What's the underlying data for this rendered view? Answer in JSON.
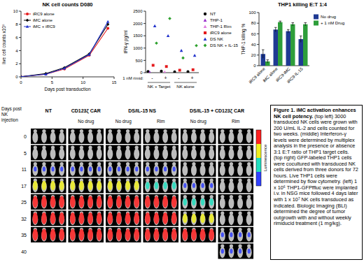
{
  "chart_data": [
    {
      "type": "line",
      "title": "NK cell counts D080",
      "x_label": "Days post transduction",
      "y_label": "live cell counts x10⁵",
      "x": [
        0,
        4,
        7,
        11,
        14
      ],
      "xlim": [
        0,
        15
      ],
      "xticks": [
        0,
        5,
        10,
        15
      ],
      "ylim": [
        0,
        10
      ],
      "yticks": [
        0,
        2,
        4,
        6,
        8,
        10
      ],
      "legend": "upper left",
      "series": [
        {
          "name": "iRC9 alone",
          "color": "#e41a1c",
          "marker": "circle",
          "values": [
            0.03,
            0.4,
            1.2,
            3.3,
            7.4
          ]
        },
        {
          "name": "iMC alone",
          "color": "#000000",
          "marker": "diamond",
          "values": [
            0.03,
            0.5,
            1.4,
            3.5,
            8.0
          ]
        },
        {
          "name": "iMC + iRC9",
          "color": "#2233cc",
          "marker": "triangle",
          "values": [
            0.03,
            0.4,
            1.3,
            3.4,
            8.4
          ]
        }
      ]
    },
    {
      "type": "scatter",
      "y_label": "IFN-γ pg/ml",
      "row_label": "1 nM rimid:",
      "categories": [
        "-",
        "+",
        "-",
        "+"
      ],
      "group_labels": [
        "NK + Target",
        "NK alone"
      ],
      "ylim": [
        0,
        2500
      ],
      "yticks": [
        0,
        500,
        1000,
        1500,
        2000,
        2500
      ],
      "legend": "right",
      "series": [
        {
          "name": "NT",
          "color": "#000000",
          "marker": "circle",
          "values": [
            50,
            60,
            30,
            40
          ]
        },
        {
          "name": "THP-1",
          "color": "#9932cc",
          "marker": "triangle",
          "values": [
            20,
            null,
            null,
            null
          ]
        },
        {
          "name": "THP-1 Rim",
          "color": "#e07be0",
          "marker": "triangle",
          "values": [
            null,
            25,
            null,
            null
          ]
        },
        {
          "name": "iRC9 alone",
          "color": "#e41a1c",
          "marker": "square",
          "values": [
            300,
            250,
            100,
            120
          ]
        },
        {
          "name": "DS NK",
          "color": "#2233cc",
          "marker": "triangle",
          "values": [
            1900,
            1500,
            900,
            700
          ]
        },
        {
          "name": "DS NK + IL-15",
          "color": "#2ca02c",
          "marker": "diamond",
          "values": [
            1200,
            2200,
            600,
            1100
          ]
        }
      ]
    },
    {
      "type": "bar",
      "title": "THP1 killing E:T 1:4",
      "y_label": "THP-1 killing %",
      "categories": [
        "iRC9 alone",
        "iMC alone",
        "iRC9-iMC",
        "iRC9-IL-15"
      ],
      "ylim": [
        0,
        100
      ],
      "yticks": [
        0,
        20,
        40,
        60,
        80,
        100
      ],
      "legend": "right",
      "series": [
        {
          "name": "No drug",
          "color": "#1f3a93",
          "values": [
            22,
            68,
            65,
            50
          ],
          "errors": [
            8,
            4,
            3,
            6
          ]
        },
        {
          "name": "+ 1 nM Drug",
          "color": "#2e9e3a",
          "values": [
            8,
            82,
            78,
            78
          ],
          "errors": [
            3,
            2,
            3,
            3
          ]
        }
      ]
    }
  ],
  "imaging": {
    "row_label": "Days post NK injection",
    "groups": [
      {
        "label": "NT",
        "panels": [
          null
        ]
      },
      {
        "label": "CD123ζ CAR",
        "panels": [
          "No drug"
        ]
      },
      {
        "label": "DS/IL-15 NS",
        "panels": [
          "No drug",
          "Rim"
        ]
      },
      {
        "label": "DS/IL-15 + CD123ζ CAR",
        "panels": [
          "No drug",
          "Rim"
        ]
      }
    ],
    "rows": [
      {
        "day": 0,
        "signal": [
          0,
          0,
          0,
          0,
          0,
          0
        ]
      },
      {
        "day": 5,
        "signal": [
          0,
          0,
          0,
          0,
          0,
          0
        ]
      },
      {
        "day": 11,
        "signal": [
          1,
          1,
          1,
          1,
          0,
          0
        ]
      },
      {
        "day": 17,
        "signal": [
          3,
          3,
          3,
          2,
          1,
          0
        ]
      },
      {
        "day": 25,
        "signal": [
          4,
          4,
          4,
          4,
          2,
          0
        ]
      },
      {
        "day": 32,
        "signal": [
          4,
          4,
          4,
          4,
          3,
          0
        ]
      },
      {
        "day": 35,
        "signal": [
          4,
          4,
          4,
          4,
          4,
          1
        ]
      },
      {
        "day": 40,
        "signal": [
          null,
          null,
          null,
          null,
          null,
          1
        ]
      }
    ],
    "colorbar": {
      "title": "Luminescence",
      "colors": [
        "#3040ff",
        "#20e0c0",
        "#f0f020",
        "#ff2020"
      ]
    }
  },
  "caption": {
    "title": "Figure 1. iMC activation enhances NK cell potency.",
    "text": "(top left) 3000 transduced NK cells were grown with 200 U/mL IL-2 and cells counted for two weeks. (middle) Interferon-γ levels were determined by multiplex analysis in the presence or absence 3:1 E:T ratio of THP1 target cells. (top right) GFP-labeled THP1 cells were cocultured with transduced NK cells derived from three donors for 72 hours. Live THP1 cells were determined by flow cytometry. (left) 1 x 10⁶ THP1-GFPffluc were implanted i.v. in NSG mice followed 4 days later with 1 x 10⁷ NK cells transduced as indicated. Biologic Imaging (BLI) determined the degree of tumor outgrowth with and without weekly rimiducid treatment (1 mg/kg)."
  }
}
